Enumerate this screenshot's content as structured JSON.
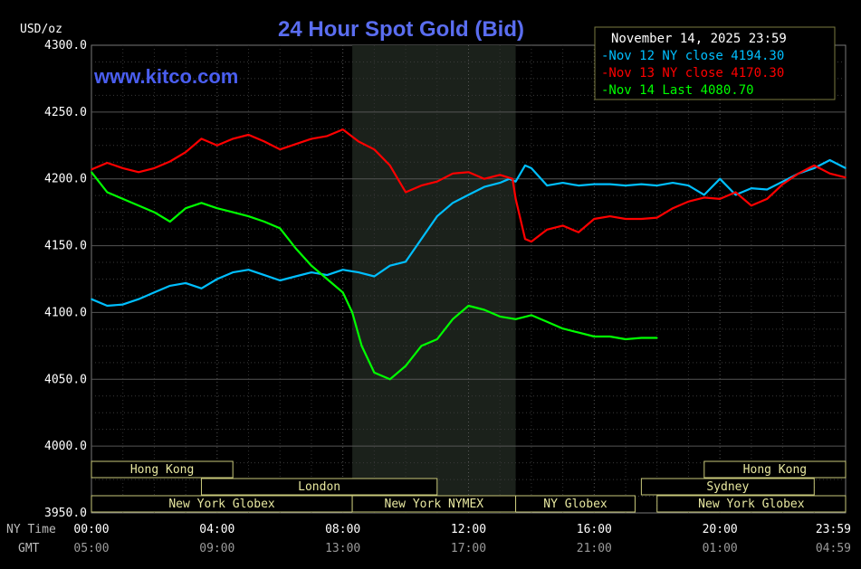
{
  "chart_data": {
    "type": "line",
    "title": "24 Hour Spot Gold (Bid)",
    "watermark": "www.kitco.com",
    "y_unit": "USD/oz",
    "timestamp": "November 14, 2025 23:59",
    "ylim": [
      3950,
      4300
    ],
    "y_ticks": [
      "4300.0",
      "4250.0",
      "4200.0",
      "4150.0",
      "4100.0",
      "4050.0",
      "4000.0",
      "3950.0"
    ],
    "xlim": [
      0,
      24
    ],
    "x_tick_hours": [
      0,
      4,
      8,
      12,
      16,
      20,
      24
    ],
    "x_row_labels": [
      "NY Time",
      "GMT"
    ],
    "x_ticks_ny": [
      "00:00",
      "04:00",
      "08:00",
      "12:00",
      "16:00",
      "20:00",
      "23:59"
    ],
    "x_ticks_gmt": [
      "05:00",
      "09:00",
      "13:00",
      "17:00",
      "21:00",
      "01:00",
      "04:59"
    ],
    "grid": true,
    "legend_position": "top-right",
    "shaded_session_hours": [
      8.3,
      13.5
    ],
    "series": [
      {
        "name": "Nov 12 NY close 4194.30",
        "color": "#00bfff",
        "x": [
          0,
          0.5,
          1,
          1.5,
          2,
          2.5,
          3,
          3.5,
          4,
          4.5,
          5,
          5.5,
          6,
          6.5,
          7,
          7.5,
          8,
          8.5,
          9,
          9.5,
          10,
          10.5,
          11,
          11.5,
          12,
          12.5,
          13,
          13.3,
          13.5,
          13.8,
          14,
          14.5,
          15,
          15.5,
          16,
          16.5,
          17,
          17.5,
          18,
          18.5,
          19,
          19.5,
          20,
          20.5,
          21,
          21.5,
          22,
          22.5,
          23,
          23.5,
          24
        ],
        "y": [
          4110,
          4105,
          4106,
          4110,
          4115,
          4120,
          4122,
          4118,
          4125,
          4130,
          4132,
          4128,
          4124,
          4127,
          4130,
          4128,
          4132,
          4130,
          4127,
          4135,
          4138,
          4155,
          4172,
          4182,
          4188,
          4194,
          4197,
          4200,
          4198,
          4210,
          4208,
          4195,
          4197,
          4195,
          4196,
          4196,
          4195,
          4196,
          4195,
          4197,
          4195,
          4188,
          4200,
          4188,
          4193,
          4192,
          4198,
          4204,
          4208,
          4214,
          4208
        ]
      },
      {
        "name": "Nov 13 NY close 4170.30",
        "color": "#ff0000",
        "x": [
          0,
          0.5,
          1,
          1.5,
          2,
          2.5,
          3,
          3.5,
          4,
          4.5,
          5,
          5.5,
          6,
          6.5,
          7,
          7.5,
          8,
          8.5,
          9,
          9.5,
          10,
          10.5,
          11,
          11.5,
          12,
          12.5,
          13,
          13.4,
          13.5,
          13.8,
          14,
          14.5,
          15,
          15.5,
          16,
          16.5,
          17,
          17.5,
          18,
          18.5,
          19,
          19.5,
          20,
          20.5,
          21,
          21.5,
          22,
          22.5,
          23,
          23.5,
          24
        ],
        "y": [
          4207,
          4212,
          4208,
          4205,
          4208,
          4213,
          4220,
          4230,
          4225,
          4230,
          4233,
          4228,
          4222,
          4226,
          4230,
          4232,
          4237,
          4228,
          4222,
          4210,
          4190,
          4195,
          4198,
          4204,
          4205,
          4200,
          4203,
          4200,
          4185,
          4155,
          4153,
          4162,
          4165,
          4160,
          4170,
          4172,
          4170,
          4170,
          4171,
          4178,
          4183,
          4186,
          4185,
          4190,
          4180,
          4185,
          4196,
          4204,
          4210,
          4204,
          4201
        ]
      },
      {
        "name": "Nov 14 Last 4080.70",
        "color": "#00ff00",
        "x": [
          0,
          0.5,
          1,
          1.5,
          2,
          2.5,
          3,
          3.5,
          4,
          4.5,
          5,
          5.5,
          6,
          6.5,
          7,
          7.5,
          8,
          8.3,
          8.6,
          9,
          9.5,
          10,
          10.5,
          11,
          11.5,
          12,
          12.5,
          13,
          13.5,
          14,
          14.5,
          15,
          15.5,
          16,
          16.5,
          17,
          17.5,
          18
        ],
        "y": [
          4205,
          4190,
          4185,
          4180,
          4175,
          4168,
          4178,
          4182,
          4178,
          4175,
          4172,
          4168,
          4163,
          4148,
          4135,
          4125,
          4115,
          4100,
          4075,
          4055,
          4050,
          4060,
          4075,
          4080,
          4095,
          4105,
          4102,
          4097,
          4095,
          4098,
          4093,
          4088,
          4085,
          4082,
          4082,
          4080,
          4081,
          4081
        ]
      }
    ],
    "sessions": [
      {
        "name": "Hong Kong",
        "start": 0,
        "end": 4.5,
        "row": 1
      },
      {
        "name": "Hong Kong",
        "start": 19.5,
        "end": 24,
        "row": 1
      },
      {
        "name": "London",
        "start": 3.5,
        "end": 11,
        "row": 2
      },
      {
        "name": "Sydney",
        "start": 17.5,
        "end": 23,
        "row": 2
      },
      {
        "name": "New York Globex",
        "start": 0,
        "end": 8.3,
        "row": 3
      },
      {
        "name": "New York NYMEX",
        "start": 8.3,
        "end": 13.5,
        "row": 3
      },
      {
        "name": "NY Globex",
        "start": 13.5,
        "end": 17.3,
        "row": 3
      },
      {
        "name": "New York Globex",
        "start": 18,
        "end": 24,
        "row": 3
      }
    ]
  }
}
